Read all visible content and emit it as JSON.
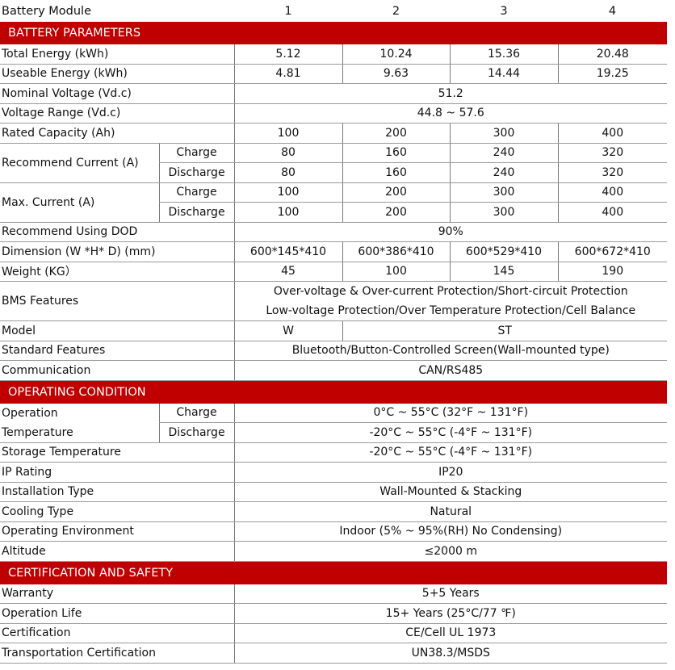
{
  "header": {
    "label": "Battery Module",
    "modules": [
      "1",
      "2",
      "3",
      "4"
    ]
  },
  "sections": {
    "battery": "BATTERY PARAMETERS",
    "operating": "OPERATING CONDITION",
    "cert": "CERTIFICATION AND SAFETY"
  },
  "rows": {
    "total": {
      "label": "Total Energy (kWh)",
      "values": [
        "5.12",
        "10.24",
        "15.36",
        "20.48"
      ]
    },
    "useable": {
      "label": "Useable Energy (kWh)",
      "values": [
        "4.81",
        "9.63",
        "14.44",
        "19.25"
      ]
    },
    "nominal": {
      "label": "Nominal Voltage (Vd.c)",
      "value": "51.2"
    },
    "vrange": {
      "label": "Voltage Range (Vd.c)",
      "value": "44.8 ~ 57.6"
    },
    "rated": {
      "label": "Rated Capacity (Ah)",
      "values": [
        "100",
        "200",
        "300",
        "400"
      ]
    },
    "rec": {
      "label": "Recommend Current (A)",
      "charge": "Charge",
      "discharge": "Discharge",
      "charge_values": [
        "80",
        "160",
        "240",
        "320"
      ],
      "discharge_values": [
        "80",
        "160",
        "240",
        "320"
      ]
    },
    "max": {
      "label": "Max. Current (A)",
      "charge": "Charge",
      "discharge": "Discharge",
      "charge_values": [
        "100",
        "200",
        "300",
        "400"
      ],
      "discharge_values": [
        "100",
        "200",
        "300",
        "400"
      ]
    },
    "dod": {
      "label": "Recommend Using DOD",
      "value": "90%"
    },
    "dim": {
      "label": "Dimension (W *H* D) (mm)",
      "values": [
        "600*145*410",
        "600*386*410",
        "600*529*410",
        "600*672*410"
      ]
    },
    "weight": {
      "label": "Weight (KG）",
      "values": [
        "45",
        "100",
        "145",
        "190"
      ]
    },
    "bms": {
      "label": "BMS Features",
      "line1": "Over-voltage & Over-current Protection/Short-circuit Protection",
      "line2": "Low-voltage Protection/Over Temperature Protection/Cell Balance"
    },
    "model": {
      "label": "Model",
      "w": "W",
      "st": "ST"
    },
    "std": {
      "label": "Standard Features",
      "value": "Bluetooth/Button-Controlled Screen(Wall-mounted type)"
    },
    "comm": {
      "label": "Communication",
      "value": "CAN/RS485"
    },
    "optemp": {
      "label1": "Operation",
      "label2": "Temperature",
      "charge": "Charge",
      "discharge": "Discharge",
      "charge_value": "0°C ~ 55°C (32°F ~ 131°F)",
      "discharge_value": "-20°C ~ 55°C (-4°F ~ 131°F)"
    },
    "storage": {
      "label": "Storage Temperature",
      "value": "-20°C ~ 55°C (-4°F ~ 131°F)"
    },
    "ip": {
      "label": "IP Rating",
      "value": "IP20"
    },
    "install": {
      "label": "Installation Type",
      "value": "Wall-Mounted & Stacking"
    },
    "cooling": {
      "label": "Cooling Type",
      "value": "Natural"
    },
    "env": {
      "label": "Operating Environment",
      "value": "Indoor (5% ~ 95%(RH) No Condensing)"
    },
    "alt": {
      "label": "Altitude",
      "value": "≤2000 m"
    },
    "warranty": {
      "label": "Warranty",
      "value": "5+5 Years"
    },
    "life": {
      "label": "Operation Life",
      "value": "15+ Years  (25°C/77 ℉)"
    },
    "certification": {
      "label": "Certification",
      "value": "CE/Cell UL 1973"
    },
    "transport": {
      "label": "Transportation Certification",
      "value": "UN38.3/MSDS"
    }
  }
}
